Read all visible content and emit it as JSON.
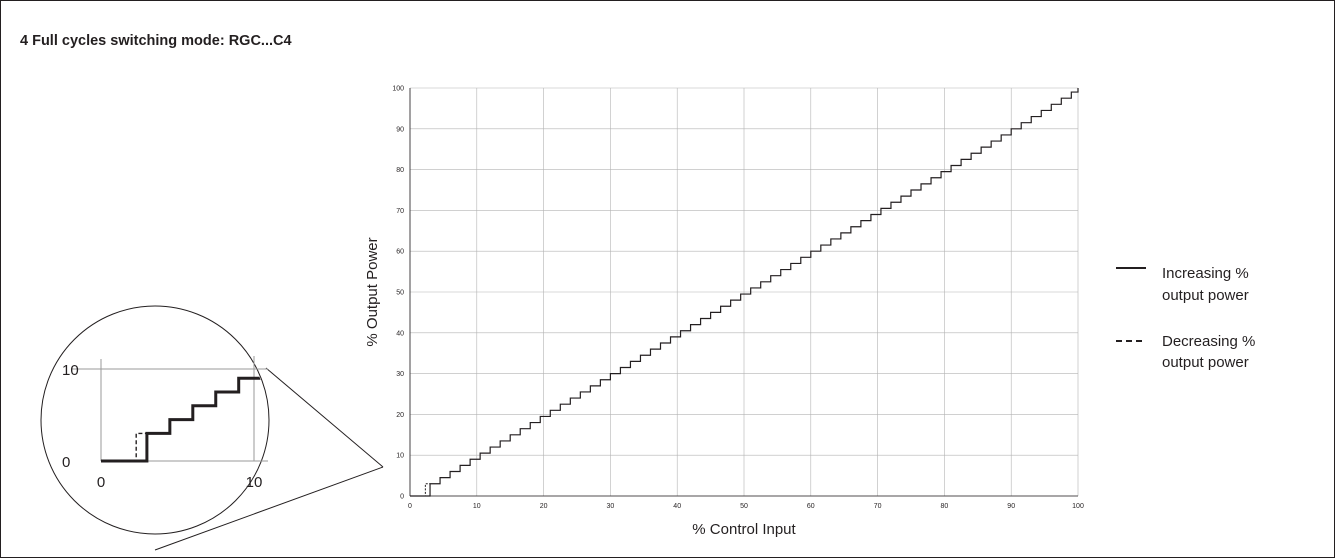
{
  "heading": "4 Full cycles switching mode: RGC...C4",
  "chart_data": {
    "type": "line",
    "step": "post",
    "title": "",
    "xlabel": "% Control Input",
    "ylabel": "% Output Power",
    "xlim": [
      0,
      100
    ],
    "ylim": [
      0,
      100
    ],
    "xticks": [
      "0",
      "10",
      "20",
      "30",
      "40",
      "50",
      "60",
      "70",
      "80",
      "90",
      "100"
    ],
    "yticks": [
      "0",
      "10",
      "20",
      "30",
      "40",
      "50",
      "60",
      "70",
      "80",
      "90",
      "100"
    ],
    "grid": true,
    "legend_position": "right",
    "series": [
      {
        "name": "Increasing % output power",
        "style": "solid",
        "x": [
          0,
          3,
          4.5,
          6,
          7.5,
          9,
          10.5,
          12,
          13.5,
          15,
          16.5,
          18,
          19.5,
          21,
          22.5,
          24,
          25.5,
          27,
          28.5,
          30,
          31.5,
          33,
          34.5,
          36,
          37.5,
          39,
          40.5,
          42,
          43.5,
          45,
          46.5,
          48,
          49.5,
          51,
          52.5,
          54,
          55.5,
          57,
          58.5,
          60,
          61.5,
          63,
          64.5,
          66,
          67.5,
          69,
          70.5,
          72,
          73.5,
          75,
          76.5,
          78,
          79.5,
          81,
          82.5,
          84,
          85.5,
          87,
          88.5,
          90,
          91.5,
          93,
          94.5,
          96,
          97.5,
          99,
          100
        ],
        "y": [
          0,
          3,
          4.5,
          6,
          7.5,
          9,
          10.5,
          12,
          13.5,
          15,
          16.5,
          18,
          19.5,
          21,
          22.5,
          24,
          25.5,
          27,
          28.5,
          30,
          31.5,
          33,
          34.5,
          36,
          37.5,
          39,
          40.5,
          42,
          43.5,
          45,
          46.5,
          48,
          49.5,
          51,
          52.5,
          54,
          55.5,
          57,
          58.5,
          60,
          61.5,
          63,
          64.5,
          66,
          67.5,
          69,
          70.5,
          72,
          73.5,
          75,
          76.5,
          78,
          79.5,
          81,
          82.5,
          84,
          85.5,
          87,
          88.5,
          90,
          91.5,
          93,
          94.5,
          96,
          97.5,
          99,
          100
        ]
      },
      {
        "name": "Decreasing % output power",
        "style": "dashed",
        "x": [
          0,
          2.3,
          3
        ],
        "y": [
          0,
          3,
          3
        ]
      }
    ],
    "inset": {
      "type": "line",
      "description": "magnified view near origin",
      "xlim": [
        0,
        10
      ],
      "ylim": [
        0,
        10
      ],
      "xticks": [
        "0",
        "10"
      ],
      "yticks": [
        "0",
        "10"
      ]
    }
  },
  "legend": [
    {
      "line1": "Increasing %",
      "line2": "output power",
      "style": "solid"
    },
    {
      "line1": "Decreasing %",
      "line2": "output power",
      "style": "dashed"
    }
  ]
}
